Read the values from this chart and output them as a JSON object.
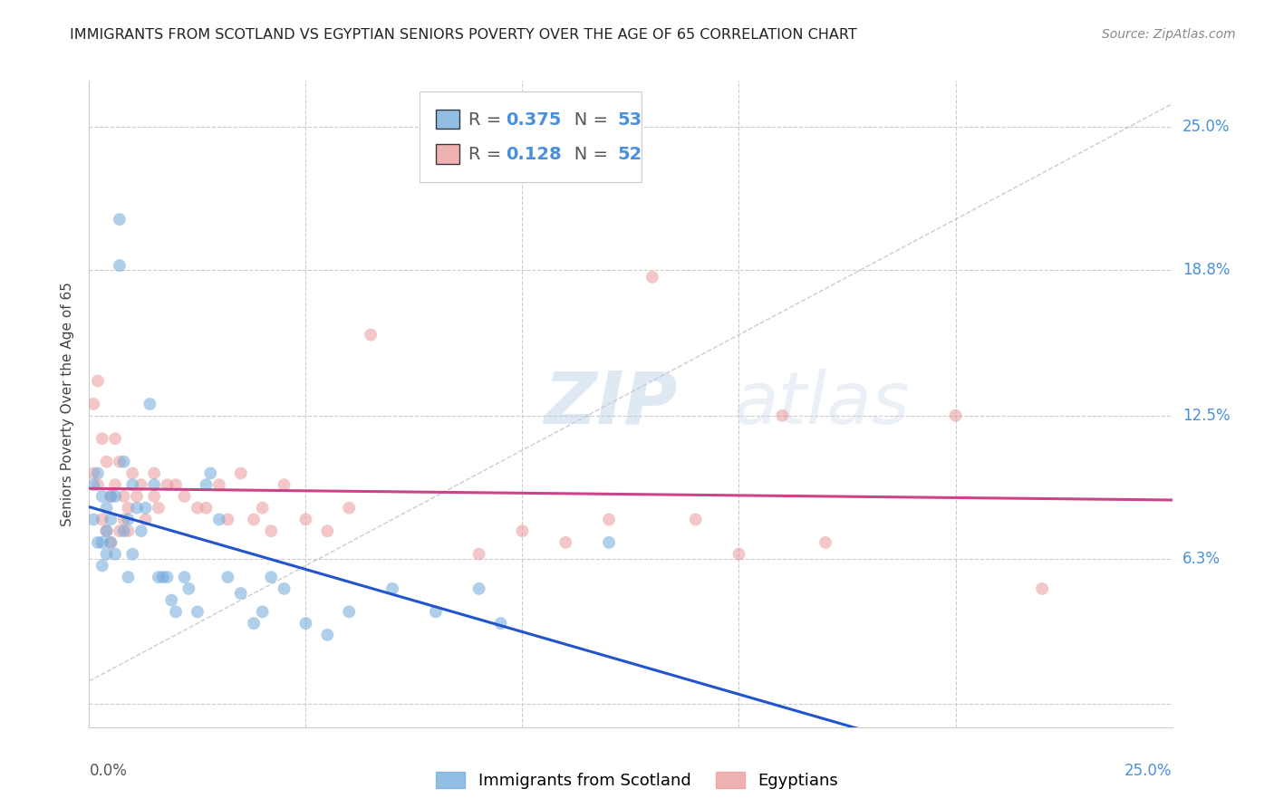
{
  "title": "IMMIGRANTS FROM SCOTLAND VS EGYPTIAN SENIORS POVERTY OVER THE AGE OF 65 CORRELATION CHART",
  "source": "Source: ZipAtlas.com",
  "ylabel": "Seniors Poverty Over the Age of 65",
  "xlim": [
    0.0,
    0.25
  ],
  "ylim": [
    -0.01,
    0.27
  ],
  "yticks": [
    0.0,
    0.063,
    0.125,
    0.188,
    0.25
  ],
  "ytick_labels": [
    "",
    "6.3%",
    "12.5%",
    "18.8%",
    "25.0%"
  ],
  "xticks": [
    0.0,
    0.05,
    0.1,
    0.15,
    0.2,
    0.25
  ],
  "scotland_color": "#6fa8dc",
  "egypt_color": "#ea9999",
  "line_color_scotland": "#2255cc",
  "line_color_egypt": "#cc4488",
  "scotland_R": 0.375,
  "scotland_N": 53,
  "egypt_R": 0.128,
  "egypt_N": 52,
  "legend_label_scotland": "Immigrants from Scotland",
  "legend_label_egypt": "Egyptians",
  "watermark": "ZIPatlas",
  "background_color": "#ffffff",
  "grid_color": "#cccccc",
  "tick_color": "#4a90d9",
  "scotland_points_x": [
    0.001,
    0.001,
    0.002,
    0.002,
    0.003,
    0.003,
    0.003,
    0.004,
    0.004,
    0.004,
    0.005,
    0.005,
    0.005,
    0.006,
    0.006,
    0.007,
    0.007,
    0.008,
    0.008,
    0.009,
    0.009,
    0.01,
    0.01,
    0.011,
    0.012,
    0.013,
    0.014,
    0.015,
    0.016,
    0.017,
    0.018,
    0.019,
    0.02,
    0.022,
    0.023,
    0.025,
    0.027,
    0.028,
    0.03,
    0.032,
    0.035,
    0.038,
    0.04,
    0.042,
    0.045,
    0.05,
    0.055,
    0.06,
    0.07,
    0.08,
    0.09,
    0.095,
    0.12
  ],
  "scotland_points_y": [
    0.095,
    0.08,
    0.1,
    0.07,
    0.09,
    0.07,
    0.06,
    0.085,
    0.075,
    0.065,
    0.09,
    0.08,
    0.07,
    0.09,
    0.065,
    0.21,
    0.19,
    0.105,
    0.075,
    0.08,
    0.055,
    0.095,
    0.065,
    0.085,
    0.075,
    0.085,
    0.13,
    0.095,
    0.055,
    0.055,
    0.055,
    0.045,
    0.04,
    0.055,
    0.05,
    0.04,
    0.095,
    0.1,
    0.08,
    0.055,
    0.048,
    0.035,
    0.04,
    0.055,
    0.05,
    0.035,
    0.03,
    0.04,
    0.05,
    0.04,
    0.05,
    0.035,
    0.07
  ],
  "egypt_points_x": [
    0.001,
    0.001,
    0.002,
    0.002,
    0.003,
    0.003,
    0.004,
    0.004,
    0.005,
    0.005,
    0.006,
    0.006,
    0.007,
    0.007,
    0.008,
    0.008,
    0.009,
    0.009,
    0.01,
    0.011,
    0.012,
    0.013,
    0.015,
    0.015,
    0.016,
    0.018,
    0.02,
    0.022,
    0.025,
    0.027,
    0.03,
    0.032,
    0.035,
    0.038,
    0.04,
    0.042,
    0.045,
    0.05,
    0.055,
    0.06,
    0.065,
    0.09,
    0.1,
    0.11,
    0.12,
    0.13,
    0.14,
    0.15,
    0.16,
    0.17,
    0.2,
    0.22
  ],
  "egypt_points_y": [
    0.13,
    0.1,
    0.14,
    0.095,
    0.115,
    0.08,
    0.105,
    0.075,
    0.09,
    0.07,
    0.095,
    0.115,
    0.105,
    0.075,
    0.09,
    0.08,
    0.075,
    0.085,
    0.1,
    0.09,
    0.095,
    0.08,
    0.1,
    0.09,
    0.085,
    0.095,
    0.095,
    0.09,
    0.085,
    0.085,
    0.095,
    0.08,
    0.1,
    0.08,
    0.085,
    0.075,
    0.095,
    0.08,
    0.075,
    0.085,
    0.16,
    0.065,
    0.075,
    0.07,
    0.08,
    0.185,
    0.08,
    0.065,
    0.125,
    0.07,
    0.125,
    0.05
  ],
  "title_fontsize": 11.5,
  "axis_label_fontsize": 11,
  "tick_fontsize": 12,
  "legend_fontsize": 14,
  "source_fontsize": 10,
  "dot_size": 100,
  "dot_alpha": 0.55,
  "line_width": 2.2
}
